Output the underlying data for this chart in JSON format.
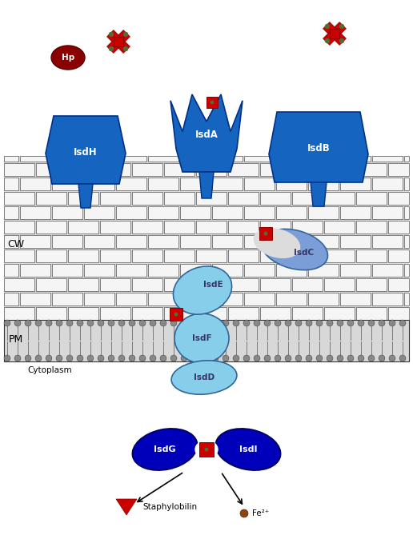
{
  "bg_color": "#ffffff",
  "cw_label": "CW",
  "pm_label": "PM",
  "cytoplasm_label": "Cytoplasm",
  "colors": {
    "bg_color": "#ffffff",
    "blue_protein": "#1565C0",
    "blue_protein_edge": "#003088",
    "blue_light": "#87CEEB",
    "blue_periwinkle": "#7B9DD8",
    "blue_dark": "#0000BB",
    "blue_dark_edge": "#000066",
    "red_heme": "#CC0000",
    "red_heme_edge": "#880000",
    "olive_dot": "#556B2F",
    "dark_red_hp": "#8B0000",
    "dark_red_hp_edge": "#550000",
    "wall_fill": "#F5F5F5",
    "wall_edge": "#555555",
    "wall_bg": "#DCDCDC",
    "membrane_head": "#888888",
    "membrane_head_edge": "#333333",
    "membrane_tail": "#555555",
    "red_triangle": "#CC0000",
    "red_triangle_edge": "#880000",
    "brown_dot": "#8B4513",
    "brown_dot_edge": "#5D2E0C",
    "text_white": "#ffffff",
    "text_black": "#000000",
    "text_dark_blue": "#333366"
  }
}
